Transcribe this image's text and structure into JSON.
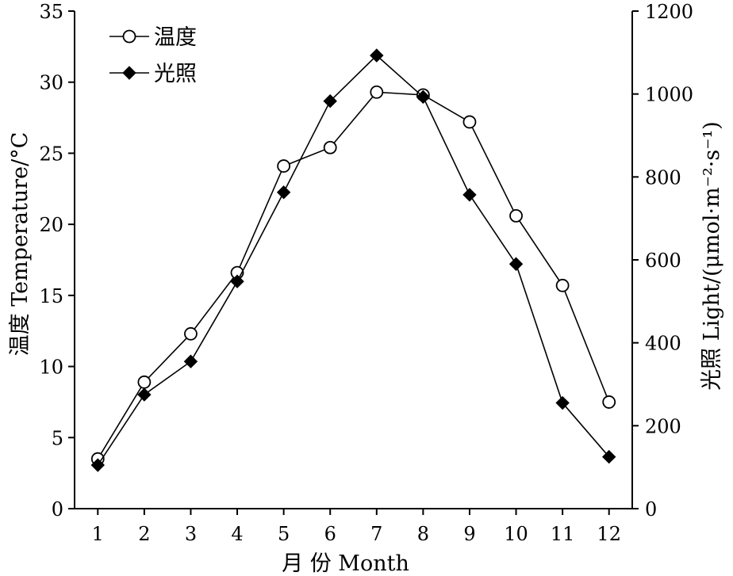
{
  "chart_data": {
    "type": "line",
    "x": [
      1,
      2,
      3,
      4,
      5,
      6,
      7,
      8,
      9,
      10,
      11,
      12
    ],
    "series": [
      {
        "name": "温度",
        "axis": "left",
        "marker": "open-circle",
        "values": [
          3.5,
          8.9,
          12.3,
          16.6,
          24.1,
          25.4,
          29.3,
          29.1,
          27.2,
          20.6,
          15.7,
          7.5
        ]
      },
      {
        "name": "光照",
        "axis": "right",
        "marker": "filled-diamond",
        "values": [
          105,
          275,
          355,
          548,
          763,
          983,
          1093,
          993,
          757,
          590,
          255,
          125
        ]
      }
    ],
    "xlabel": "月 份 Month",
    "ylabel_left": "温度 Temperature/°C",
    "ylabel_right": "光照 Light/(μmol·m⁻²·s⁻¹)",
    "xlim": [
      0.5,
      12.5
    ],
    "ylim_left": [
      0,
      35
    ],
    "ylim_right": [
      0,
      1200
    ],
    "xticks": [
      "1",
      "2",
      "3",
      "4",
      "5",
      "6",
      "7",
      "8",
      "9",
      "10",
      "11",
      "12"
    ],
    "yticks_left": [
      "0",
      "5",
      "10",
      "15",
      "20",
      "25",
      "30",
      "35"
    ],
    "yticks_right": [
      "0",
      "200",
      "400",
      "600",
      "800",
      "1000",
      "1200"
    ],
    "legend_position": "top-left",
    "grid": false,
    "line_color": "#000000"
  }
}
